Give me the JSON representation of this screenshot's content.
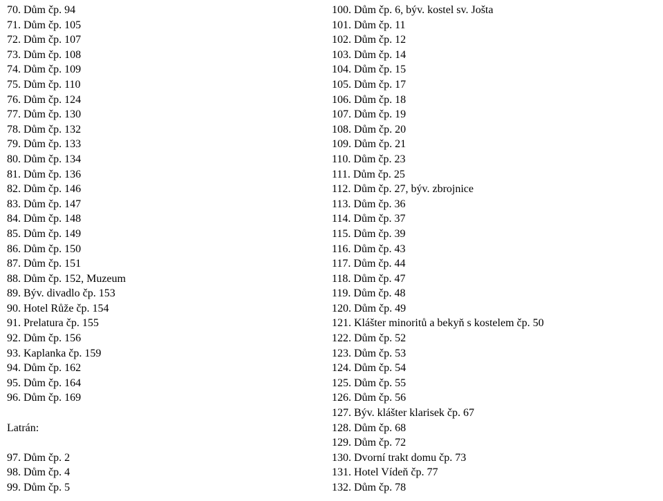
{
  "font": {
    "family": "Times New Roman",
    "size_pt": 12,
    "color": "#000000"
  },
  "background_color": "#ffffff",
  "left_column": [
    {
      "n": "70.",
      "t": "Dům čp. 94"
    },
    {
      "n": "71.",
      "t": "Dům čp. 105"
    },
    {
      "n": "72.",
      "t": "Dům čp. 107"
    },
    {
      "n": "73.",
      "t": "Dům čp. 108"
    },
    {
      "n": "74.",
      "t": "Dům čp. 109"
    },
    {
      "n": "75.",
      "t": "Dům čp. 110"
    },
    {
      "n": "76.",
      "t": "Dům čp. 124"
    },
    {
      "n": "77.",
      "t": "Dům čp. 130"
    },
    {
      "n": "78.",
      "t": "Dům čp. 132"
    },
    {
      "n": "79.",
      "t": "Dům čp. 133"
    },
    {
      "n": "80.",
      "t": "Dům čp. 134"
    },
    {
      "n": "81.",
      "t": "Dům čp. 136"
    },
    {
      "n": "82.",
      "t": "Dům čp. 146"
    },
    {
      "n": "83.",
      "t": "Dům čp. 147"
    },
    {
      "n": "84.",
      "t": "Dům čp. 148"
    },
    {
      "n": "85.",
      "t": "Dům čp. 149"
    },
    {
      "n": "86.",
      "t": "Dům čp. 150"
    },
    {
      "n": "87.",
      "t": "Dům čp. 151"
    },
    {
      "n": "88.",
      "t": "Dům čp. 152, Muzeum"
    },
    {
      "n": "89.",
      "t": "Býv. divadlo čp. 153"
    },
    {
      "n": "90.",
      "t": "Hotel Růže čp. 154"
    },
    {
      "n": "91.",
      "t": "Prelatura čp. 155"
    },
    {
      "n": "92.",
      "t": "Dům čp. 156"
    },
    {
      "n": "93.",
      "t": "Kaplanka čp. 159"
    },
    {
      "n": "94.",
      "t": "Dům čp. 162"
    },
    {
      "n": "95.",
      "t": "Dům čp. 164"
    },
    {
      "n": "96.",
      "t": "Dům čp. 169"
    }
  ],
  "left_section_label": "Latrán:",
  "left_column_2": [
    {
      "n": "97.",
      "t": "Dům čp. 2"
    },
    {
      "n": "98.",
      "t": "Dům čp. 4"
    },
    {
      "n": "99.",
      "t": "Dům čp. 5"
    }
  ],
  "right_column": [
    {
      "n": "100.",
      "t": "Dům čp. 6, býv. kostel sv. Jošta"
    },
    {
      "n": "101.",
      "t": "Dům čp. 11"
    },
    {
      "n": "102.",
      "t": "Dům čp. 12"
    },
    {
      "n": "103.",
      "t": "Dům čp. 14"
    },
    {
      "n": "104.",
      "t": "Dům čp. 15"
    },
    {
      "n": "105.",
      "t": "Dům čp. 17"
    },
    {
      "n": "106.",
      "t": "Dům čp. 18"
    },
    {
      "n": "107.",
      "t": "Dům čp. 19"
    },
    {
      "n": "108.",
      "t": "Dům čp. 20"
    },
    {
      "n": "109.",
      "t": "Dům čp. 21"
    },
    {
      "n": "110.",
      "t": "Dům čp. 23"
    },
    {
      "n": "111.",
      "t": "Dům čp. 25"
    },
    {
      "n": "112.",
      "t": "Dům čp. 27, býv. zbrojnice"
    },
    {
      "n": "113.",
      "t": "Dům čp. 36"
    },
    {
      "n": "114.",
      "t": "Dům čp. 37"
    },
    {
      "n": "115.",
      "t": "Dům čp. 39"
    },
    {
      "n": "116.",
      "t": "Dům čp. 43"
    },
    {
      "n": "117.",
      "t": "Dům čp. 44"
    },
    {
      "n": "118.",
      "t": "Dům čp. 47"
    },
    {
      "n": "119.",
      "t": "Dům čp. 48"
    },
    {
      "n": "120.",
      "t": "Dům čp. 49"
    },
    {
      "n": "121.",
      "t": "Klášter minoritů a bekyň s kostelem čp. 50"
    },
    {
      "n": "122.",
      "t": "Dům čp. 52"
    },
    {
      "n": "123.",
      "t": "Dům čp. 53"
    },
    {
      "n": "124.",
      "t": "Dům čp. 54"
    },
    {
      "n": "125.",
      "t": "Dům čp. 55"
    },
    {
      "n": "126.",
      "t": "Dům čp. 56"
    },
    {
      "n": "127.",
      "t": "Býv. klášter klarisek čp. 67"
    },
    {
      "n": "128.",
      "t": "Dům čp. 68"
    },
    {
      "n": "129.",
      "t": "Dům čp. 72"
    },
    {
      "n": "130.",
      "t": "Dvorní trakt domu čp. 73"
    },
    {
      "n": "131.",
      "t": "Hotel Vídeň čp. 77"
    },
    {
      "n": "132.",
      "t": "Dům čp. 78"
    }
  ]
}
